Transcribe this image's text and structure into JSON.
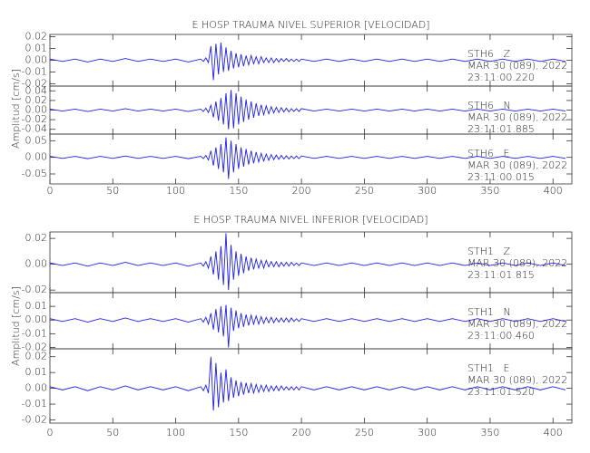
{
  "chart_data": [
    {
      "type": "line",
      "title": "E HOSP TRAUMA NIVEL SUPERIOR [VELOCIDAD]",
      "y_label": "Amplitud [cm/s]",
      "xlim": [
        0,
        415
      ],
      "xticks": [
        0,
        50,
        100,
        150,
        200,
        250,
        300,
        350,
        400
      ],
      "x": [
        0,
        10,
        20,
        30,
        40,
        50,
        60,
        70,
        80,
        90,
        100,
        110,
        120,
        122,
        124,
        126,
        128,
        130,
        132,
        134,
        136,
        138,
        140,
        142,
        144,
        146,
        148,
        150,
        152,
        154,
        156,
        158,
        160,
        162,
        164,
        166,
        168,
        170,
        172,
        174,
        176,
        178,
        180,
        182,
        184,
        186,
        188,
        190,
        192,
        194,
        196,
        198,
        200,
        210,
        220,
        230,
        240,
        250,
        260,
        270,
        280,
        290,
        300,
        310,
        320,
        330,
        340,
        350,
        360,
        370,
        380,
        390,
        400,
        410
      ],
      "panels": [
        {
          "station": "STH6   Z",
          "date": "MAR 30 (089), 2022",
          "time": "23:11:00.220",
          "color": "#1f1fe6",
          "ylim": [
            -0.022,
            0.022
          ],
          "yticks": [
            -0.02,
            -0.01,
            {
              "value": 0,
              "label": "0.00"
            },
            0.01,
            0.02
          ],
          "values": [
            0.001,
            -0.001,
            0.001,
            -0.0015,
            0.001,
            -0.001,
            0.0015,
            -0.001,
            0.001,
            -0.001,
            0.001,
            -0.0015,
            0.001,
            -0.001,
            0.002,
            -0.002,
            0.012,
            -0.017,
            0.014,
            -0.012,
            0.015,
            -0.01,
            0.011,
            -0.009,
            0.008,
            -0.007,
            0.006,
            -0.006,
            0.005,
            -0.005,
            0.004,
            -0.004,
            0.004,
            -0.003,
            0.003,
            -0.003,
            0.003,
            -0.002,
            0.002,
            -0.002,
            0.002,
            -0.002,
            0.0015,
            -0.0015,
            0.0015,
            -0.001,
            0.0015,
            -0.001,
            0.001,
            -0.001,
            0.001,
            -0.001,
            0.001,
            -0.001,
            0.001,
            -0.001,
            0.001,
            -0.001,
            0.001,
            -0.001,
            0.001,
            -0.001,
            0.001,
            -0.001,
            0.001,
            -0.001,
            0.001,
            -0.001,
            0.001,
            -0.001,
            0.001,
            -0.001,
            0.001,
            -0.001
          ]
        },
        {
          "station": "STH6   N",
          "date": "MAR 30 (089), 2022",
          "time": "23:11:01.885",
          "color": "#1f1fe6",
          "ylim": [
            -0.05,
            0.05
          ],
          "yticks": [
            -0.04,
            -0.02,
            {
              "value": 0,
              "label": "0.00"
            },
            0.02,
            0.04
          ],
          "values": [
            0.002,
            -0.002,
            0.002,
            -0.003,
            0.002,
            -0.002,
            0.003,
            -0.002,
            0.002,
            -0.002,
            0.002,
            -0.003,
            0.002,
            -0.003,
            0.004,
            -0.005,
            0.01,
            -0.015,
            0.018,
            -0.022,
            0.025,
            -0.03,
            0.035,
            -0.04,
            0.042,
            -0.038,
            0.035,
            -0.03,
            0.028,
            -0.025,
            0.022,
            -0.02,
            0.018,
            -0.016,
            0.014,
            -0.012,
            0.011,
            -0.01,
            0.009,
            -0.008,
            0.007,
            -0.006,
            0.006,
            -0.005,
            0.005,
            -0.004,
            0.004,
            -0.004,
            0.003,
            -0.003,
            0.003,
            -0.003,
            0.003,
            -0.002,
            0.002,
            -0.002,
            0.002,
            -0.002,
            0.002,
            -0.002,
            0.002,
            -0.002,
            0.002,
            -0.002,
            0.002,
            -0.002,
            0.002,
            -0.002,
            0.002,
            -0.002,
            0.002,
            -0.002,
            0.002,
            -0.002
          ]
        },
        {
          "station": "STH6   E",
          "date": "MAR 30 (089), 2022",
          "time": "23:11:00.015",
          "color": "#1f1fe6",
          "ylim": [
            -0.08,
            0.07
          ],
          "yticks": [
            -0.05,
            {
              "value": 0,
              "label": "0.00"
            },
            0.05
          ],
          "values": [
            0.003,
            -0.003,
            0.003,
            -0.004,
            0.003,
            -0.003,
            0.004,
            -0.003,
            0.003,
            -0.003,
            0.003,
            -0.004,
            0.003,
            -0.004,
            0.006,
            -0.008,
            0.02,
            -0.025,
            0.03,
            -0.035,
            0.04,
            -0.045,
            0.06,
            -0.065,
            0.05,
            -0.045,
            0.04,
            -0.035,
            0.03,
            -0.028,
            0.025,
            -0.022,
            0.02,
            -0.018,
            0.016,
            -0.014,
            0.012,
            -0.011,
            0.01,
            -0.009,
            0.008,
            -0.007,
            0.007,
            -0.006,
            0.006,
            -0.005,
            0.005,
            -0.005,
            0.004,
            -0.004,
            0.004,
            -0.004,
            0.004,
            -0.003,
            0.003,
            -0.003,
            0.003,
            -0.003,
            0.003,
            -0.003,
            0.003,
            -0.003,
            0.003,
            -0.003,
            0.003,
            -0.003,
            0.003,
            -0.003,
            0.003,
            -0.003,
            0.003,
            -0.003,
            0.003,
            -0.003
          ]
        }
      ]
    },
    {
      "type": "line",
      "title": "E HOSP TRAUMA NIVEL INFERIOR [VELOCIDAD]",
      "y_label": "Amplitud [cm/s]",
      "xlim": [
        0,
        415
      ],
      "xticks": [
        0,
        50,
        100,
        150,
        200,
        250,
        300,
        350,
        400
      ],
      "x": [
        0,
        10,
        20,
        30,
        40,
        50,
        60,
        70,
        80,
        90,
        100,
        110,
        120,
        122,
        124,
        126,
        128,
        130,
        132,
        134,
        136,
        138,
        140,
        142,
        144,
        146,
        148,
        150,
        152,
        154,
        156,
        158,
        160,
        162,
        164,
        166,
        168,
        170,
        172,
        174,
        176,
        178,
        180,
        182,
        184,
        186,
        188,
        190,
        192,
        194,
        196,
        198,
        200,
        210,
        220,
        230,
        240,
        250,
        260,
        270,
        280,
        290,
        300,
        310,
        320,
        330,
        340,
        350,
        360,
        370,
        380,
        390,
        400,
        410
      ],
      "panels": [
        {
          "station": "STH1   Z",
          "date": "MAR 30 (089), 2022",
          "time": "23:11:01.815",
          "color": "#1f1fe6",
          "ylim": [
            -0.022,
            0.025
          ],
          "yticks": [
            -0.02,
            {
              "value": 0,
              "label": "0.00"
            },
            0.02
          ],
          "values": [
            0.001,
            -0.001,
            0.001,
            -0.0015,
            0.001,
            -0.001,
            0.0015,
            -0.001,
            0.001,
            -0.001,
            0.001,
            -0.0015,
            0.001,
            -0.0015,
            0.002,
            -0.003,
            0.006,
            -0.008,
            0.01,
            -0.012,
            0.014,
            -0.016,
            0.024,
            -0.02,
            0.015,
            -0.012,
            0.01,
            -0.009,
            0.008,
            -0.007,
            0.006,
            -0.005,
            0.005,
            -0.004,
            0.004,
            -0.003,
            0.003,
            -0.003,
            0.003,
            -0.002,
            0.002,
            -0.002,
            0.002,
            -0.002,
            0.0015,
            -0.0015,
            0.0015,
            -0.0015,
            0.0015,
            -0.001,
            0.001,
            -0.001,
            0.001,
            -0.001,
            0.001,
            -0.001,
            0.001,
            -0.001,
            0.001,
            -0.001,
            0.001,
            -0.001,
            0.001,
            -0.001,
            0.001,
            -0.001,
            0.001,
            -0.001,
            0.001,
            -0.001,
            0.001,
            -0.001,
            0.001,
            -0.001
          ]
        },
        {
          "station": "STH1   N",
          "date": "MAR 30 (089), 2022",
          "time": "23:11:00.460",
          "color": "#1f1fe6",
          "ylim": [
            -0.021,
            0.02
          ],
          "yticks": [
            -0.02,
            -0.01,
            {
              "value": 0,
              "label": "0.00"
            },
            0.01
          ],
          "values": [
            0.001,
            -0.001,
            0.001,
            -0.0015,
            0.001,
            -0.001,
            0.0015,
            -0.001,
            0.001,
            -0.001,
            0.001,
            -0.0015,
            0.001,
            -0.0015,
            0.002,
            -0.003,
            0.005,
            -0.007,
            0.008,
            -0.009,
            0.01,
            -0.012,
            0.011,
            -0.02,
            0.009,
            -0.008,
            0.007,
            -0.006,
            0.005,
            -0.005,
            0.004,
            -0.004,
            0.0035,
            -0.003,
            0.003,
            -0.003,
            0.0025,
            -0.0025,
            0.002,
            -0.002,
            0.002,
            -0.002,
            0.0015,
            -0.0015,
            0.0015,
            -0.0015,
            0.0015,
            -0.0015,
            0.0015,
            -0.001,
            0.001,
            -0.001,
            0.001,
            -0.001,
            0.001,
            -0.001,
            0.001,
            -0.001,
            0.001,
            -0.001,
            0.001,
            -0.001,
            0.001,
            -0.001,
            0.001,
            -0.001,
            0.001,
            -0.001,
            0.001,
            -0.001,
            0.001,
            -0.001,
            0.001,
            -0.001
          ]
        },
        {
          "station": "STH1   E",
          "date": "MAR 30 (089), 2022",
          "time": "23:11:01.520",
          "color": "#1f1fe6",
          "ylim": [
            -0.022,
            0.025
          ],
          "yticks": [
            -0.02,
            -0.01,
            {
              "value": 0,
              "label": "0.00"
            },
            0.01,
            0.02
          ],
          "values": [
            0.001,
            -0.001,
            0.001,
            -0.0015,
            0.001,
            -0.001,
            0.0015,
            -0.001,
            0.001,
            -0.001,
            0.001,
            -0.0015,
            0.001,
            -0.0015,
            0.002,
            -0.003,
            0.02,
            -0.014,
            0.016,
            -0.012,
            0.01,
            -0.009,
            0.012,
            -0.008,
            0.007,
            -0.006,
            0.005,
            -0.005,
            0.004,
            -0.004,
            0.0035,
            -0.003,
            0.003,
            -0.003,
            0.0025,
            -0.0025,
            0.002,
            -0.002,
            0.002,
            -0.002,
            0.0015,
            -0.0015,
            0.0015,
            -0.0015,
            0.0015,
            -0.001,
            0.001,
            -0.001,
            0.001,
            -0.001,
            0.001,
            -0.001,
            0.001,
            -0.001,
            0.001,
            -0.001,
            0.001,
            -0.001,
            0.001,
            -0.001,
            0.001,
            -0.001,
            0.001,
            -0.001,
            0.001,
            -0.001,
            0.001,
            -0.001,
            0.001,
            -0.001,
            0.001,
            -0.001,
            0.001,
            -0.001
          ]
        }
      ]
    }
  ]
}
